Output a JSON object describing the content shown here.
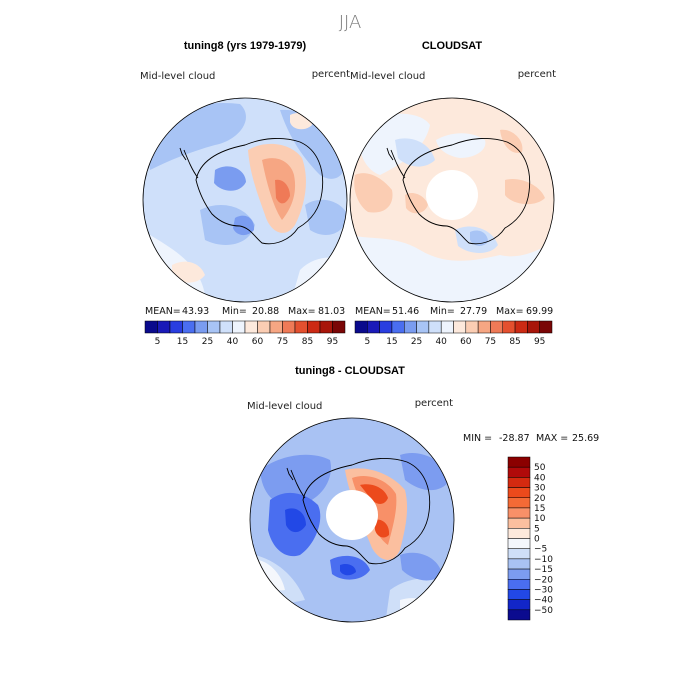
{
  "page": {
    "season": "JJA",
    "colors": {
      "land_outline": "#000000",
      "ocean_hole": "#ffffff"
    }
  },
  "chart_data": [
    {
      "type": "heatmap",
      "projection": "south-polar-stereographic",
      "title": "tuning8 (yrs 1979-1979)",
      "left_label": "Mid-level cloud",
      "right_label": "percent",
      "stats": {
        "mean_label": "MEAN=",
        "mean": "43.93",
        "min_label": "Min=",
        "min": "20.88",
        "max_label": "Max=",
        "max": "81.03"
      },
      "colorbar": {
        "orientation": "horizontal",
        "ticks": [
          "5",
          "15",
          "25",
          "40",
          "60",
          "75",
          "85",
          "95"
        ],
        "levels": [
          5,
          10,
          15,
          20,
          25,
          30,
          40,
          50,
          60,
          70,
          75,
          80,
          85,
          90,
          95
        ],
        "colors": [
          "#0a0a8c",
          "#1a1ab8",
          "#2a3ee0",
          "#4a6ef0",
          "#7a9cf0",
          "#a8c4f5",
          "#cfe0fa",
          "#eef4fd",
          "#fde9dc",
          "#fbcdb3",
          "#f6a683",
          "#ef7a57",
          "#e4502f",
          "#cc2a14",
          "#a8150a",
          "#7a0606"
        ]
      },
      "field_levels_present": [
        25,
        40,
        50,
        60,
        75
      ]
    },
    {
      "type": "heatmap",
      "projection": "south-polar-stereographic",
      "title": "CLOUDSAT",
      "left_label": "Mid-level cloud",
      "right_label": "percent",
      "stats": {
        "mean_label": "MEAN=",
        "mean": "51.46",
        "min_label": "Min=",
        "min": "27.79",
        "max_label": "Max=",
        "max": "69.99"
      },
      "colorbar": {
        "orientation": "horizontal",
        "ticks": [
          "5",
          "15",
          "25",
          "40",
          "60",
          "75",
          "85",
          "95"
        ],
        "levels": [
          5,
          10,
          15,
          20,
          25,
          30,
          40,
          50,
          60,
          70,
          75,
          80,
          85,
          90,
          95
        ],
        "colors": [
          "#0a0a8c",
          "#1a1ab8",
          "#2a3ee0",
          "#4a6ef0",
          "#7a9cf0",
          "#a8c4f5",
          "#cfe0fa",
          "#eef4fd",
          "#fde9dc",
          "#fbcdb3",
          "#f6a683",
          "#ef7a57",
          "#e4502f",
          "#cc2a14",
          "#a8150a",
          "#7a0606"
        ]
      },
      "field_levels_present": [
        40,
        50,
        60
      ]
    },
    {
      "type": "heatmap",
      "projection": "south-polar-stereographic",
      "title": "tuning8 - CLOUDSAT",
      "left_label": "Mid-level cloud",
      "right_label": "percent",
      "stats": {
        "min_label": "MIN =",
        "min": "-28.87",
        "max_label": "MAX =",
        "max": "25.69"
      },
      "colorbar": {
        "orientation": "vertical",
        "ticks": [
          "50",
          "40",
          "30",
          "20",
          "15",
          "10",
          "5",
          "0",
          "−5",
          "−10",
          "−15",
          "−20",
          "−30",
          "−40",
          "−50"
        ],
        "colors": [
          "#8b0000",
          "#b00a0a",
          "#d42a10",
          "#ec4a1c",
          "#f46a36",
          "#f89068",
          "#fbbf9f",
          "#fde9dc",
          "#f4f7fc",
          "#cfdff8",
          "#a9c2f3",
          "#7c9cf0",
          "#4a6ef0",
          "#2248e6",
          "#1226c8",
          "#0b0b8f"
        ]
      },
      "field_levels_present": [
        -20,
        -15,
        -10,
        -5,
        5,
        10,
        15,
        20
      ]
    }
  ]
}
